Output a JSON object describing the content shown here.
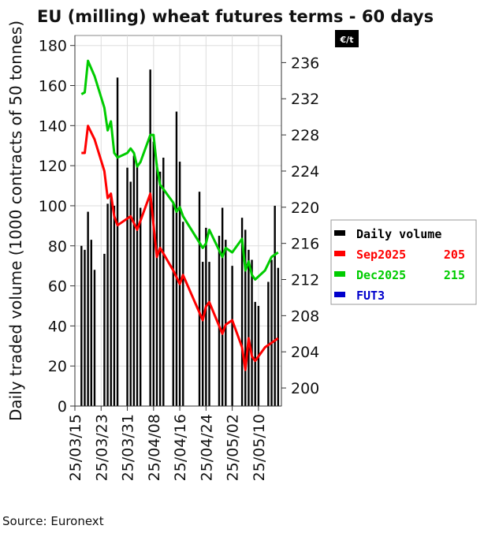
{
  "chart_data": {
    "type": "bar+line",
    "title": "EU (milling) wheat futures terms - 60 days",
    "ylabel": "Daily traded volume (1000 contracts of 50 tonnes)",
    "y2_unit": "€/t",
    "ylim": [
      0,
      185
    ],
    "y2lim": [
      198,
      239
    ],
    "yticks": [
      0,
      20,
      40,
      60,
      80,
      100,
      120,
      140,
      160,
      180
    ],
    "y2ticks": [
      200,
      204,
      208,
      212,
      216,
      220,
      224,
      228,
      232,
      236
    ],
    "xtick_labels": [
      "25/03/15",
      "25/03/23",
      "25/03/31",
      "25/04/08",
      "25/04/16",
      "25/04/24",
      "25/05/02",
      "25/05/10"
    ],
    "grid": true,
    "legend_position": "right",
    "source": "Source: Euronext",
    "legend": [
      {
        "label": "Daily volume",
        "value": "",
        "color": "#000000"
      },
      {
        "label": "Sep2025",
        "value": "205",
        "color": "#ff0000"
      },
      {
        "label": "Dec2025",
        "value": "215",
        "color": "#00cc00"
      },
      {
        "label": "FUT3",
        "value": "",
        "color": "#0000cc"
      }
    ],
    "bars": [
      {
        "date": "2025-03-17",
        "value": 80
      },
      {
        "date": "2025-03-18",
        "value": 78
      },
      {
        "date": "2025-03-19",
        "value": 97
      },
      {
        "date": "2025-03-20",
        "value": 83
      },
      {
        "date": "2025-03-21",
        "value": 68
      },
      {
        "date": "2025-03-24",
        "value": 76
      },
      {
        "date": "2025-03-25",
        "value": 101
      },
      {
        "date": "2025-03-26",
        "value": 106
      },
      {
        "date": "2025-03-27",
        "value": 100
      },
      {
        "date": "2025-03-28",
        "value": 164
      },
      {
        "date": "2025-03-31",
        "value": 119
      },
      {
        "date": "2025-04-01",
        "value": 112
      },
      {
        "date": "2025-04-02",
        "value": 125
      },
      {
        "date": "2025-04-03",
        "value": 120
      },
      {
        "date": "2025-04-04",
        "value": 99
      },
      {
        "date": "2025-04-07",
        "value": 168
      },
      {
        "date": "2025-04-08",
        "value": 132
      },
      {
        "date": "2025-04-09",
        "value": 121
      },
      {
        "date": "2025-04-10",
        "value": 117
      },
      {
        "date": "2025-04-11",
        "value": 124
      },
      {
        "date": "2025-04-14",
        "value": 102
      },
      {
        "date": "2025-04-15",
        "value": 147
      },
      {
        "date": "2025-04-16",
        "value": 122
      },
      {
        "date": "2025-04-17",
        "value": 92
      },
      {
        "date": "2025-04-22",
        "value": 107
      },
      {
        "date": "2025-04-23",
        "value": 72
      },
      {
        "date": "2025-04-24",
        "value": 89
      },
      {
        "date": "2025-04-25",
        "value": 72
      },
      {
        "date": "2025-04-28",
        "value": 85
      },
      {
        "date": "2025-04-29",
        "value": 99
      },
      {
        "date": "2025-04-30",
        "value": 83
      },
      {
        "date": "2025-05-02",
        "value": 70
      },
      {
        "date": "2025-05-05",
        "value": 94
      },
      {
        "date": "2025-05-06",
        "value": 88
      },
      {
        "date": "2025-05-07",
        "value": 78
      },
      {
        "date": "2025-05-08",
        "value": 73
      },
      {
        "date": "2025-05-09",
        "value": 52
      },
      {
        "date": "2025-05-10",
        "value": 50
      },
      {
        "date": "2025-05-13",
        "value": 62
      },
      {
        "date": "2025-05-14",
        "value": 73
      },
      {
        "date": "2025-05-15",
        "value": 100
      },
      {
        "date": "2025-05-16",
        "value": 69
      }
    ],
    "series": [
      {
        "name": "Sep2025",
        "color": "#ff0000",
        "points": [
          [
            "2025-03-17",
            226.0
          ],
          [
            "2025-03-18",
            226.0
          ],
          [
            "2025-03-19",
            229.0
          ],
          [
            "2025-03-21",
            227.5
          ],
          [
            "2025-03-24",
            224.0
          ],
          [
            "2025-03-25",
            221.0
          ],
          [
            "2025-03-26",
            221.5
          ],
          [
            "2025-03-27",
            219.0
          ],
          [
            "2025-03-28",
            218.0
          ],
          [
            "2025-04-01",
            219.0
          ],
          [
            "2025-04-03",
            217.5
          ],
          [
            "2025-04-04",
            218.5
          ],
          [
            "2025-04-07",
            221.5
          ],
          [
            "2025-04-08",
            218.0
          ],
          [
            "2025-04-09",
            214.5
          ],
          [
            "2025-04-10",
            215.5
          ],
          [
            "2025-04-14",
            213.0
          ],
          [
            "2025-04-16",
            211.5
          ],
          [
            "2025-04-17",
            212.5
          ],
          [
            "2025-04-23",
            207.5
          ],
          [
            "2025-04-24",
            209.0
          ],
          [
            "2025-04-25",
            209.5
          ],
          [
            "2025-04-29",
            206.0
          ],
          [
            "2025-04-30",
            207.0
          ],
          [
            "2025-05-02",
            207.5
          ],
          [
            "2025-05-05",
            204.5
          ],
          [
            "2025-05-06",
            202.0
          ],
          [
            "2025-05-07",
            205.5
          ],
          [
            "2025-05-08",
            203.5
          ],
          [
            "2025-05-09",
            203.0
          ],
          [
            "2025-05-12",
            204.5
          ],
          [
            "2025-05-14",
            205.0
          ],
          [
            "2025-05-16",
            205.5
          ]
        ]
      },
      {
        "name": "Dec2025",
        "color": "#00cc00",
        "points": [
          [
            "2025-03-17",
            232.5
          ],
          [
            "2025-03-18",
            232.7
          ],
          [
            "2025-03-19",
            236.2
          ],
          [
            "2025-03-21",
            234.5
          ],
          [
            "2025-03-24",
            231.0
          ],
          [
            "2025-03-25",
            228.5
          ],
          [
            "2025-03-26",
            229.5
          ],
          [
            "2025-03-27",
            226.0
          ],
          [
            "2025-03-28",
            225.5
          ],
          [
            "2025-03-31",
            226.0
          ],
          [
            "2025-04-01",
            226.5
          ],
          [
            "2025-04-02",
            226.0
          ],
          [
            "2025-04-03",
            224.5
          ],
          [
            "2025-04-04",
            225.0
          ],
          [
            "2025-04-07",
            228.0
          ],
          [
            "2025-04-08",
            228.0
          ],
          [
            "2025-04-09",
            224.5
          ],
          [
            "2025-04-10",
            222.5
          ],
          [
            "2025-04-14",
            220.5
          ],
          [
            "2025-04-15",
            219.5
          ],
          [
            "2025-04-16",
            220.0
          ],
          [
            "2025-04-17",
            219.0
          ],
          [
            "2025-04-23",
            215.5
          ],
          [
            "2025-04-24",
            216.0
          ],
          [
            "2025-04-25",
            217.5
          ],
          [
            "2025-04-29",
            214.5
          ],
          [
            "2025-04-30",
            215.5
          ],
          [
            "2025-05-02",
            215.0
          ],
          [
            "2025-05-05",
            216.5
          ],
          [
            "2025-05-06",
            213.0
          ],
          [
            "2025-05-07",
            214.0
          ],
          [
            "2025-05-08",
            212.5
          ],
          [
            "2025-05-09",
            212.0
          ],
          [
            "2025-05-12",
            213.0
          ],
          [
            "2025-05-14",
            214.5
          ],
          [
            "2025-05-16",
            215.0
          ]
        ]
      }
    ]
  }
}
